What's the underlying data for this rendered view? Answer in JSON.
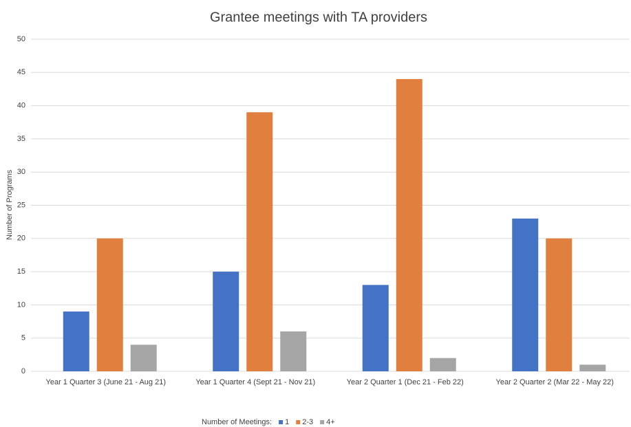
{
  "chart_data": {
    "type": "bar",
    "title": "Grantee meetings with TA providers",
    "y_label": "Number of Programs",
    "categories": [
      "Year 1 Quarter 3 (June 21 - Aug 21)",
      "Year 1 Quarter 4 (Sept 21 - Nov 21)",
      "Year 2 Quarter 1 (Dec 21 - Feb 22)",
      "Year 2 Quarter 2 (Mar 22 - May 22)"
    ],
    "series": [
      {
        "name": "1",
        "color": "#4472c4",
        "values": [
          9,
          15,
          13,
          23
        ]
      },
      {
        "name": "2-3",
        "color": "#e07f3e",
        "values": [
          20,
          39,
          44,
          20
        ]
      },
      {
        "name": "4+",
        "color": "#a5a5a5",
        "values": [
          4,
          6,
          2,
          1
        ]
      }
    ],
    "legend_title": "Number of Meetings:",
    "legend": "bottom",
    "ylim": [
      0,
      50
    ],
    "yticks": [
      0,
      5,
      10,
      15,
      20,
      25,
      30,
      35,
      40,
      45,
      50
    ],
    "grid": true
  }
}
